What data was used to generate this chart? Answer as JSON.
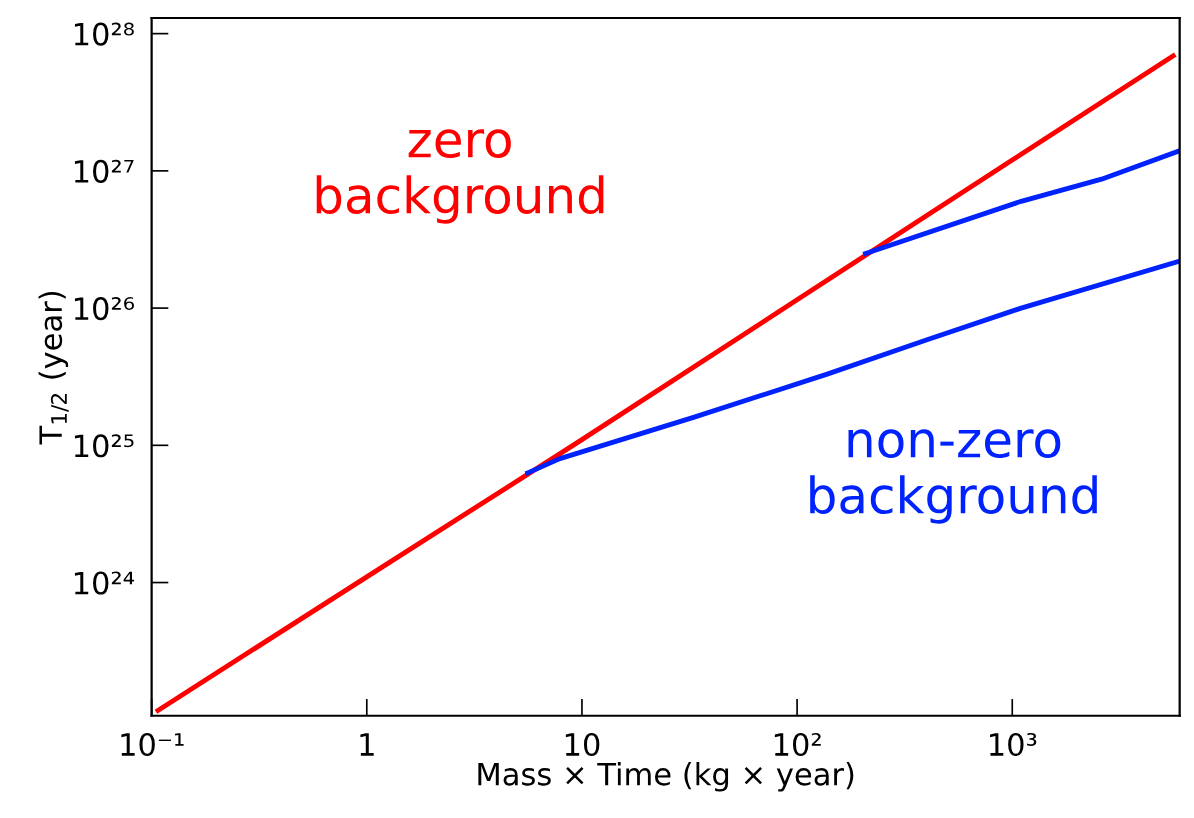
{
  "chart_data": {
    "type": "line",
    "xlabel": "Mass × Time (kg × year)",
    "ylabel": "T$_{1/2}$ (year)",
    "log": "xy",
    "grid": false,
    "marker": "none",
    "line_style": "solid",
    "xlim": [
      0.1,
      6000
    ],
    "ylim": [
      1.07e+23,
      1.3e+28
    ],
    "xticks": [
      {
        "value": 0.1,
        "label": "10⁻¹"
      },
      1,
      10,
      {
        "value": 100,
        "label": "10²"
      },
      {
        "value": 1000,
        "label": "10³"
      }
    ],
    "yticks": [
      {
        "value": 1e+24,
        "label": "10²⁴"
      },
      {
        "value": 1e+25,
        "label": "10²⁵"
      },
      {
        "value": 1e+26,
        "label": "10²⁶"
      },
      {
        "value": 1e+27,
        "label": "10²⁷"
      },
      {
        "value": 1e+28,
        "label": "10²⁸"
      }
    ],
    "series": [
      {
        "color": "#ff0000",
        "x": [
          0.107,
          1,
          10,
          100,
          1000,
          5600
        ],
        "values": [
          1.17e+23,
          1.1e+24,
          1.1e+25,
          1.15e+26,
          1.2e+27,
          6.9e+27
        ]
      },
      {
        "color": "#0022ff",
        "x": [
          5.6,
          7.9,
          33,
          138,
          405,
          1100,
          6000
        ],
        "values": [
          6.3e+24,
          8e+24,
          1.6e+25,
          3.3e+25,
          5.9e+25,
          1e+26,
          2.2e+26
        ]
      },
      {
        "color": "#0022ff",
        "x": [
          208,
          1100,
          2600,
          6000
        ],
        "values": [
          2.5e+26,
          6e+26,
          8.7e+26,
          1.4e+27
        ]
      }
    ],
    "annotations": [
      "zero\nbackground",
      "non-zero\nbackground"
    ]
  }
}
